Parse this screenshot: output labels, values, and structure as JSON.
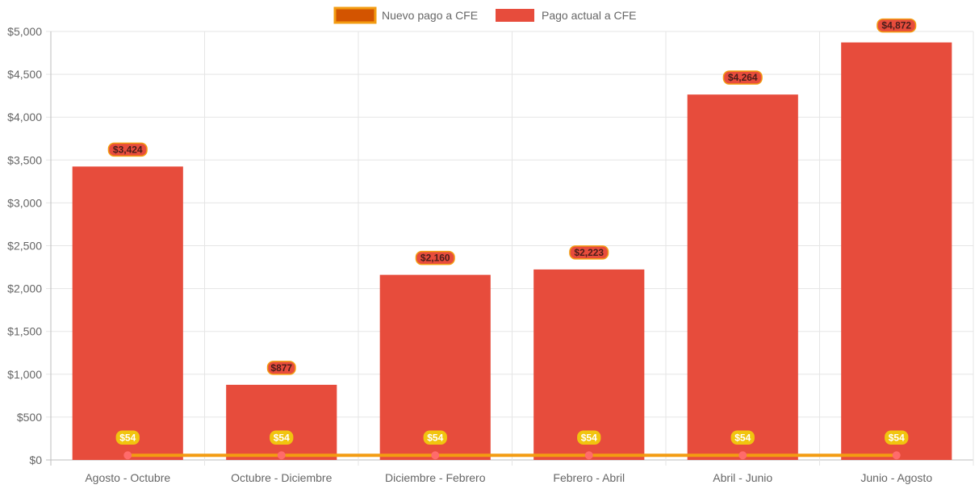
{
  "chart_data": {
    "type": "bar",
    "title": "",
    "xlabel": "",
    "ylabel": "",
    "ylim": [
      0,
      5000
    ],
    "y_ticks": [
      0,
      500,
      1000,
      1500,
      2000,
      2500,
      3000,
      3500,
      4000,
      4500,
      5000
    ],
    "y_tick_labels": [
      "$0",
      "$500",
      "$1,000",
      "$1,500",
      "$2,000",
      "$2,500",
      "$3,000",
      "$3,500",
      "$4,000",
      "$4,500",
      "$5,000"
    ],
    "grid": true,
    "legend_position": "top",
    "categories": [
      "Agosto - Octubre",
      "Octubre - Diciembre",
      "Diciembre - Febrero",
      "Febrero - Abril",
      "Abril - Junio",
      "Junio - Agosto"
    ],
    "series": [
      {
        "name": "Nuevo pago a CFE",
        "type": "line",
        "values": [
          54,
          54,
          54,
          54,
          54,
          54
        ],
        "value_labels": [
          "$54",
          "$54",
          "$54",
          "$54",
          "$54",
          "$54"
        ],
        "color": "#f39c12",
        "fill_color": "#d35400",
        "point_color": "#ff6b6b",
        "label_bg": "#f1c40f",
        "label_text_color": "#ffffff"
      },
      {
        "name": "Pago actual a CFE",
        "type": "bar",
        "values": [
          3424,
          877,
          2160,
          2223,
          4264,
          4872
        ],
        "value_labels": [
          "$3,424",
          "$877",
          "$2,160",
          "$2,223",
          "$4,264",
          "$4,872"
        ],
        "color": "#e74c3c",
        "label_bg": "#e74c3c",
        "label_border": "#f39c12",
        "label_text_color": "#4a1d1a"
      }
    ]
  }
}
